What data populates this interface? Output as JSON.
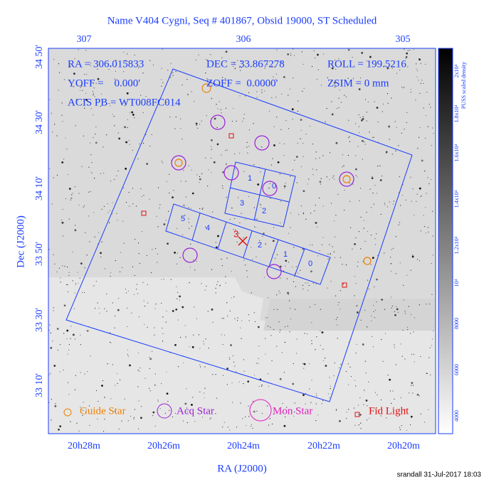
{
  "title": "Name V404 Cygni, Seq # 401867, Obsid 19000, ST Scheduled",
  "info": {
    "ra": "RA = 306.015833",
    "dec": "DEC = 33.867278",
    "roll": "ROLL = 199.5216",
    "yoff": "YOFF =    0.000'",
    "zoff": "ZOFF =  0.0000'",
    "zsim": "ZSIM = 0 mm",
    "acis": "ACIS PB = WT008FC014"
  },
  "axes": {
    "x_label": "RA (J2000)",
    "y_label": "Dec (J2000)",
    "top_ticks": [
      "307",
      "306",
      "305"
    ],
    "bottom_ticks": [
      "20h28m",
      "20h26m",
      "20h24m",
      "20h22m",
      "20h20m"
    ],
    "left_ticks": [
      "34 50'",
      "34 30'",
      "34 10'",
      "33 50'",
      "33 30'",
      "33 10'"
    ]
  },
  "colorbar": {
    "label": "PUSS scaled density",
    "ticks": [
      "4000",
      "6000",
      "8000",
      "10⁴",
      "1.2x10⁴",
      "1.4x10⁴",
      "1.6x10⁴",
      "1.8x10⁴",
      "2x10⁴"
    ]
  },
  "chips_upper": [
    "1",
    "0",
    "3",
    "2"
  ],
  "chips_lower": [
    "5",
    "4",
    "3",
    "2",
    "1",
    "0"
  ],
  "legend": [
    "Guide Star",
    "Acq Star",
    "Mon Star",
    "Fid Light"
  ],
  "footer": "srandall 31-Jul-2017 18:03"
}
